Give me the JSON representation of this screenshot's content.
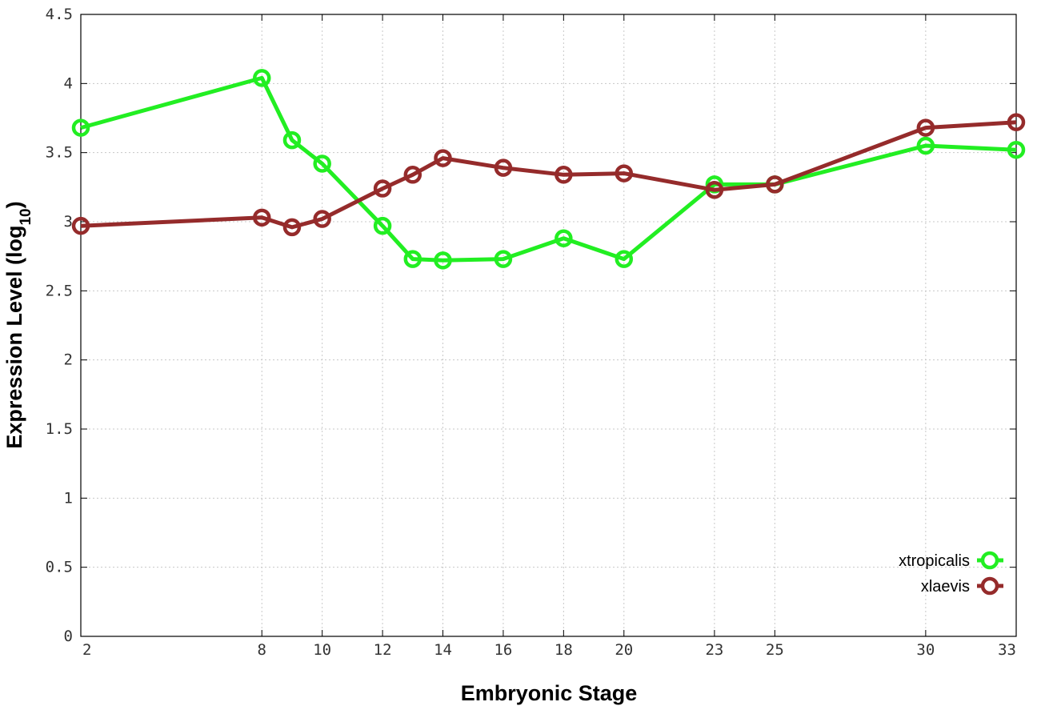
{
  "chart_data": {
    "type": "line",
    "title": "",
    "xlabel": "Embryonic Stage",
    "ylabel_main": "Expression Level (log",
    "ylabel_sub": "10",
    "ylabel_close": ")",
    "x": [
      2,
      8,
      9,
      10,
      12,
      13,
      14,
      16,
      18,
      20,
      23,
      25,
      30,
      33
    ],
    "x_ticks": [
      2,
      8,
      10,
      12,
      14,
      16,
      18,
      20,
      23,
      25,
      30,
      33
    ],
    "y_ticks": [
      "0",
      "0.5",
      "1",
      "1.5",
      "2",
      "2.5",
      "3",
      "3.5",
      "4",
      "4.5"
    ],
    "ylim": [
      0,
      4.5
    ],
    "grid": true,
    "legend_position": "bottom-right",
    "series": [
      {
        "name": "xtropicalis",
        "color": "#22ee22",
        "values": [
          3.68,
          4.04,
          3.59,
          3.42,
          2.97,
          2.73,
          2.72,
          2.73,
          2.88,
          2.73,
          3.27,
          3.27,
          3.55,
          3.52
        ]
      },
      {
        "name": "xlaevis",
        "color": "#952b2b",
        "values": [
          2.97,
          3.03,
          2.96,
          3.02,
          3.24,
          3.34,
          3.46,
          3.39,
          3.34,
          3.35,
          3.23,
          3.27,
          3.68,
          3.72
        ]
      }
    ]
  }
}
